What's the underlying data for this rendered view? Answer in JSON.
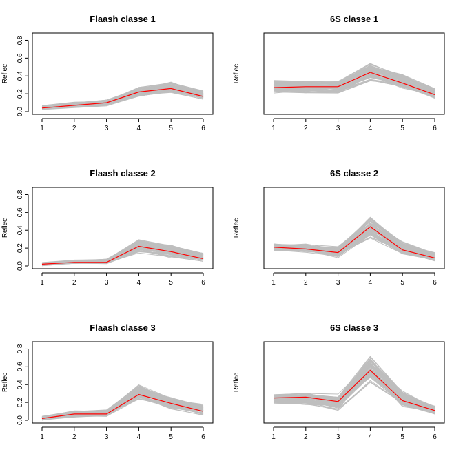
{
  "chart_data": [
    {
      "type": "line",
      "title": "Flaash classe  1",
      "ylabel": "Reflec",
      "show_y_axis": true,
      "x": [
        1,
        2,
        3,
        4,
        5,
        6
      ],
      "ylim": [
        0,
        0.85
      ],
      "yticks": [
        0.0,
        0.2,
        0.4,
        0.6,
        0.8
      ],
      "band_lower": [
        0.02,
        0.04,
        0.06,
        0.16,
        0.2,
        0.13
      ],
      "band_upper": [
        0.07,
        0.11,
        0.14,
        0.28,
        0.34,
        0.24
      ],
      "series": [
        {
          "values": [
            0.04,
            0.07,
            0.1,
            0.22,
            0.26,
            0.17
          ],
          "color": "#ff0000"
        }
      ],
      "band_color": "#bebebe"
    },
    {
      "type": "line",
      "title": "6S classe  1",
      "ylabel": "Reflec",
      "show_y_axis": false,
      "x": [
        1,
        2,
        3,
        4,
        5,
        6
      ],
      "ylim": [
        0,
        0.85
      ],
      "yticks": [
        0.0,
        0.2,
        0.4,
        0.6,
        0.8
      ],
      "band_lower": [
        0.2,
        0.2,
        0.2,
        0.33,
        0.25,
        0.14
      ],
      "band_upper": [
        0.35,
        0.35,
        0.35,
        0.55,
        0.42,
        0.26
      ],
      "series": [
        {
          "values": [
            0.27,
            0.28,
            0.28,
            0.44,
            0.32,
            0.19
          ],
          "color": "#ff0000"
        }
      ],
      "band_color": "#bebebe"
    },
    {
      "type": "line",
      "title": "Flaash classe  2",
      "ylabel": "Reflec",
      "show_y_axis": true,
      "x": [
        1,
        2,
        3,
        4,
        5,
        6
      ],
      "ylim": [
        0,
        0.85
      ],
      "yticks": [
        0.0,
        0.2,
        0.4,
        0.6,
        0.8
      ],
      "band_lower": [
        0.0,
        0.02,
        0.02,
        0.14,
        0.08,
        0.04
      ],
      "band_upper": [
        0.04,
        0.07,
        0.08,
        0.3,
        0.25,
        0.15
      ],
      "series": [
        {
          "values": [
            0.02,
            0.04,
            0.04,
            0.22,
            0.16,
            0.08
          ],
          "color": "#ff0000"
        }
      ],
      "band_color": "#bebebe"
    },
    {
      "type": "line",
      "title": "6S classe  2",
      "ylabel": "Reflec",
      "show_y_axis": false,
      "x": [
        1,
        2,
        3,
        4,
        5,
        6
      ],
      "ylim": [
        0,
        0.85
      ],
      "yticks": [
        0.0,
        0.2,
        0.4,
        0.6,
        0.8
      ],
      "band_lower": [
        0.16,
        0.15,
        0.09,
        0.28,
        0.12,
        0.05
      ],
      "band_upper": [
        0.26,
        0.25,
        0.22,
        0.58,
        0.28,
        0.16
      ],
      "series": [
        {
          "values": [
            0.21,
            0.19,
            0.15,
            0.44,
            0.18,
            0.09
          ],
          "color": "#ff0000"
        }
      ],
      "band_color": "#bebebe"
    },
    {
      "type": "line",
      "title": "Flaash classe  3",
      "ylabel": "Reflec",
      "show_y_axis": true,
      "x": [
        1,
        2,
        3,
        4,
        5,
        6
      ],
      "ylim": [
        0,
        0.85
      ],
      "yticks": [
        0.0,
        0.2,
        0.4,
        0.6,
        0.8
      ],
      "band_lower": [
        0.0,
        0.03,
        0.04,
        0.22,
        0.12,
        0.05
      ],
      "band_upper": [
        0.05,
        0.11,
        0.12,
        0.42,
        0.28,
        0.18
      ],
      "series": [
        {
          "values": [
            0.02,
            0.07,
            0.07,
            0.29,
            0.19,
            0.1
          ],
          "color": "#ff0000"
        }
      ],
      "band_color": "#bebebe"
    },
    {
      "type": "line",
      "title": "6S classe  3",
      "ylabel": "Reflec",
      "show_y_axis": false,
      "x": [
        1,
        2,
        3,
        4,
        5,
        6
      ],
      "ylim": [
        0,
        0.85
      ],
      "yticks": [
        0.0,
        0.2,
        0.4,
        0.6,
        0.8
      ],
      "band_lower": [
        0.18,
        0.16,
        0.1,
        0.42,
        0.14,
        0.06
      ],
      "band_upper": [
        0.3,
        0.32,
        0.3,
        0.76,
        0.34,
        0.17
      ],
      "series": [
        {
          "values": [
            0.25,
            0.26,
            0.21,
            0.56,
            0.22,
            0.11
          ],
          "color": "#ff0000"
        }
      ],
      "band_color": "#bebebe"
    }
  ]
}
